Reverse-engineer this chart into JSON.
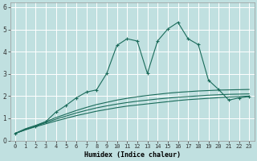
{
  "xlabel": "Humidex (Indice chaleur)",
  "background_color": "#c0e0e0",
  "grid_color": "#ffffff",
  "line_color": "#1a6b5a",
  "xlim": [
    -0.5,
    23.5
  ],
  "ylim": [
    0,
    6.2
  ],
  "x_ticks": [
    0,
    1,
    2,
    3,
    4,
    5,
    6,
    7,
    8,
    9,
    10,
    11,
    12,
    13,
    14,
    15,
    16,
    17,
    18,
    19,
    20,
    21,
    22,
    23
  ],
  "y_ticks": [
    0,
    1,
    2,
    3,
    4,
    5,
    6
  ],
  "smooth1_x": [
    0,
    1,
    2,
    3,
    4,
    5,
    6,
    7,
    8,
    9,
    10,
    11,
    12,
    13,
    14,
    15,
    16,
    17,
    18,
    19,
    20,
    21,
    22,
    23
  ],
  "smooth1_y": [
    0.32,
    0.48,
    0.62,
    0.75,
    0.88,
    1.0,
    1.12,
    1.22,
    1.32,
    1.4,
    1.48,
    1.55,
    1.6,
    1.65,
    1.7,
    1.75,
    1.8,
    1.84,
    1.87,
    1.9,
    1.93,
    1.96,
    1.98,
    2.0
  ],
  "smooth2_x": [
    0,
    1,
    2,
    3,
    4,
    5,
    6,
    7,
    8,
    9,
    10,
    11,
    12,
    13,
    14,
    15,
    16,
    17,
    18,
    19,
    20,
    21,
    22,
    23
  ],
  "smooth2_y": [
    0.32,
    0.5,
    0.65,
    0.8,
    0.96,
    1.1,
    1.24,
    1.36,
    1.47,
    1.56,
    1.64,
    1.71,
    1.77,
    1.82,
    1.87,
    1.91,
    1.95,
    1.98,
    2.01,
    2.04,
    2.06,
    2.08,
    2.09,
    2.1
  ],
  "smooth3_x": [
    0,
    1,
    2,
    3,
    4,
    5,
    6,
    7,
    8,
    9,
    10,
    11,
    12,
    13,
    14,
    15,
    16,
    17,
    18,
    19,
    20,
    21,
    22,
    23
  ],
  "smooth3_y": [
    0.32,
    0.53,
    0.68,
    0.85,
    1.03,
    1.19,
    1.35,
    1.49,
    1.62,
    1.72,
    1.82,
    1.9,
    1.97,
    2.03,
    2.08,
    2.13,
    2.17,
    2.2,
    2.23,
    2.25,
    2.27,
    2.28,
    2.29,
    2.3
  ],
  "main_x": [
    0,
    2,
    3,
    4,
    5,
    6,
    7,
    8,
    9,
    10,
    11,
    12,
    13,
    14,
    15,
    16,
    17,
    18,
    19,
    20,
    21,
    22,
    23
  ],
  "main_y": [
    0.32,
    0.65,
    0.85,
    1.28,
    1.58,
    1.92,
    2.18,
    2.28,
    3.02,
    4.28,
    4.58,
    4.48,
    3.02,
    4.48,
    5.02,
    5.32,
    4.58,
    4.32,
    2.72,
    2.3,
    1.82,
    1.92,
    1.98
  ]
}
